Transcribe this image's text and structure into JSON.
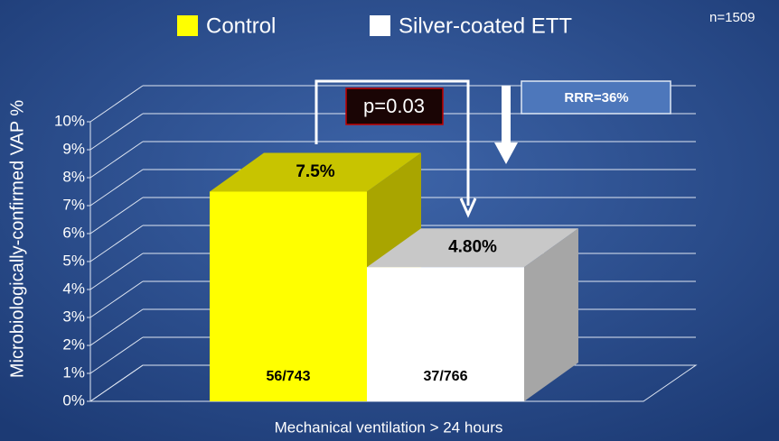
{
  "chart_data": {
    "type": "bar",
    "y_label": "Microbiologically-confirmed VAP %",
    "x_label": "Mechanical ventilation > 24 hours",
    "n_label": "n=1509",
    "p_label": "p=0.03",
    "rrr_label": "RRR=36%",
    "categories": [
      "Mechanical ventilation > 24 hours"
    ],
    "series": [
      {
        "name": "Control",
        "color": "#ffff00",
        "top_color": "#c8c400",
        "side_color": "#a9a500",
        "values": [
          7.5
        ],
        "value_labels": [
          "7.5%"
        ],
        "counts": [
          "56/743"
        ]
      },
      {
        "name": "Silver-coated ETT",
        "color": "#ffffff",
        "top_color": "#c8c8c8",
        "side_color": "#a6a6a6",
        "values": [
          4.8
        ],
        "value_labels": [
          "4.80%"
        ],
        "counts": [
          "37/766"
        ]
      }
    ],
    "ylim": [
      0,
      10
    ],
    "yticks": [
      {
        "value": 0,
        "label": "0%"
      },
      {
        "value": 1,
        "label": "1%"
      },
      {
        "value": 2,
        "label": "2%"
      },
      {
        "value": 3,
        "label": "3%"
      },
      {
        "value": 4,
        "label": "4%"
      },
      {
        "value": 5,
        "label": "5%"
      },
      {
        "value": 6,
        "label": "6%"
      },
      {
        "value": 7,
        "label": "7%"
      },
      {
        "value": 8,
        "label": "8%"
      },
      {
        "value": 9,
        "label": "9%"
      },
      {
        "value": 10,
        "label": "10%"
      }
    ],
    "grid": true
  }
}
